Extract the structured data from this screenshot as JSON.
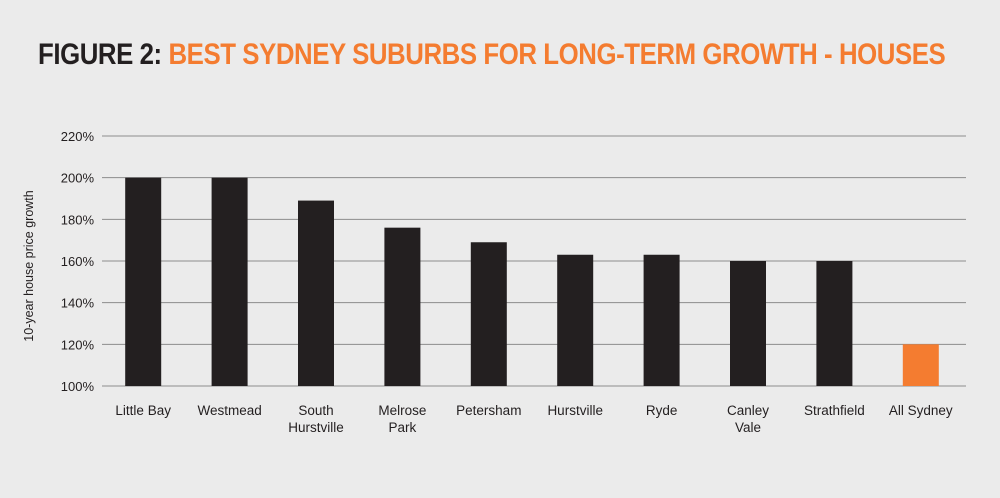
{
  "title": {
    "prefix": "FIGURE 2:",
    "main": "BEST SYDNEY SUBURBS FOR LONG-TERM GROWTH - HOUSES"
  },
  "colors": {
    "background": "#ebebeb",
    "bar": "#231f20",
    "highlight": "#f47c30",
    "grid": "#8c8c8c",
    "title_dark": "#231f20",
    "title_orange": "#f47c30"
  },
  "chart_data": {
    "type": "bar",
    "title": "BEST SYDNEY SUBURBS FOR LONG-TERM GROWTH - HOUSES",
    "ylabel": "10-year house price growth",
    "xlabel": "",
    "ylim": [
      100,
      220
    ],
    "yticks": [
      100,
      120,
      140,
      160,
      180,
      200,
      220
    ],
    "ytick_labels": [
      "100%",
      "120%",
      "140%",
      "160%",
      "180%",
      "200%",
      "220%"
    ],
    "grid": true,
    "categories": [
      [
        "Little Bay"
      ],
      [
        "Westmead"
      ],
      [
        "South",
        "Hurstville"
      ],
      [
        "Melrose",
        "Park"
      ],
      [
        "Petersham"
      ],
      [
        "Hurstville"
      ],
      [
        "Ryde"
      ],
      [
        "Canley",
        "Vale"
      ],
      [
        "Strathfield"
      ],
      [
        "All Sydney"
      ]
    ],
    "values": [
      200,
      200,
      189,
      176,
      169,
      163,
      163,
      160,
      160,
      120
    ],
    "highlight_index": 9
  }
}
